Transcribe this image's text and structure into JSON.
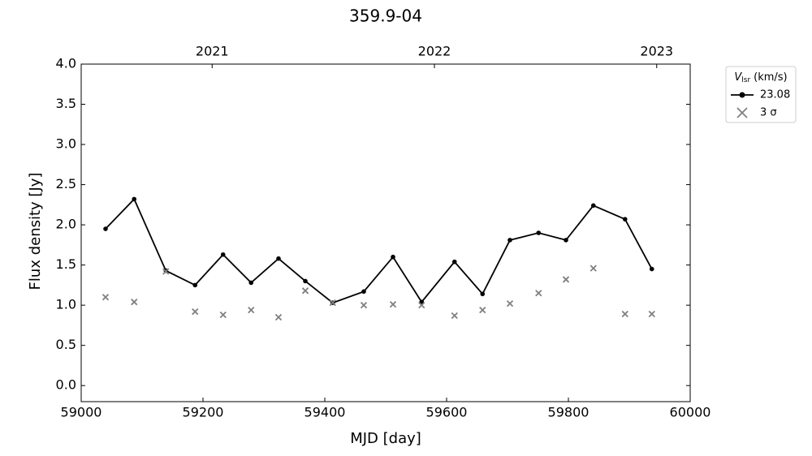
{
  "chart_data": {
    "type": "line",
    "title": "359.9-04",
    "xlabel": "MJD [day]",
    "ylabel": "Flux density [Jy]",
    "x": [
      59040,
      59087,
      59139,
      59187,
      59233,
      59279,
      59324,
      59368,
      59413,
      59464,
      59512,
      59559,
      59613,
      59659,
      59704,
      59751,
      59796,
      59841,
      59893,
      59937
    ],
    "series": [
      {
        "name": "23.08",
        "color": "#000000",
        "marker": "o",
        "values": [
          1.95,
          2.32,
          1.43,
          1.25,
          1.63,
          1.28,
          1.58,
          1.3,
          1.03,
          1.17,
          1.6,
          1.04,
          1.54,
          1.14,
          1.81,
          1.9,
          1.81,
          2.24,
          2.07,
          1.45
        ]
      },
      {
        "name": "3 σ",
        "color": "#808080",
        "marker": "x",
        "values": [
          1.1,
          1.04,
          1.42,
          0.92,
          0.88,
          0.94,
          0.85,
          1.18,
          1.03,
          1.0,
          1.01,
          1.0,
          0.87,
          0.94,
          1.02,
          1.15,
          1.32,
          1.46,
          0.89,
          0.89
        ]
      }
    ],
    "legend_title": {
      "symbol": "V",
      "subscript": "lsr",
      "unit": "(km/s)"
    },
    "legend": "outside upper right",
    "xlim": [
      59000,
      60000
    ],
    "xticks": [
      59000,
      59200,
      59400,
      59600,
      59800,
      60000
    ],
    "x2ticks": [
      {
        "value": 59215,
        "label": "2021"
      },
      {
        "value": 59580,
        "label": "2022"
      },
      {
        "value": 59945,
        "label": "2023"
      }
    ],
    "ylim": [
      -0.2,
      4.0
    ],
    "yticks": [
      {
        "value": 0,
        "label": "0.0"
      },
      {
        "value": 0.5,
        "label": "0.5"
      },
      {
        "value": 1,
        "label": "1.0"
      },
      {
        "value": 1.5,
        "label": "1.5"
      },
      {
        "value": 2,
        "label": "2.0"
      },
      {
        "value": 2.5,
        "label": "2.5"
      },
      {
        "value": 3,
        "label": "3.0"
      },
      {
        "value": 3.5,
        "label": "3.5"
      },
      {
        "value": 4,
        "label": "4.0"
      }
    ],
    "grid": false
  }
}
